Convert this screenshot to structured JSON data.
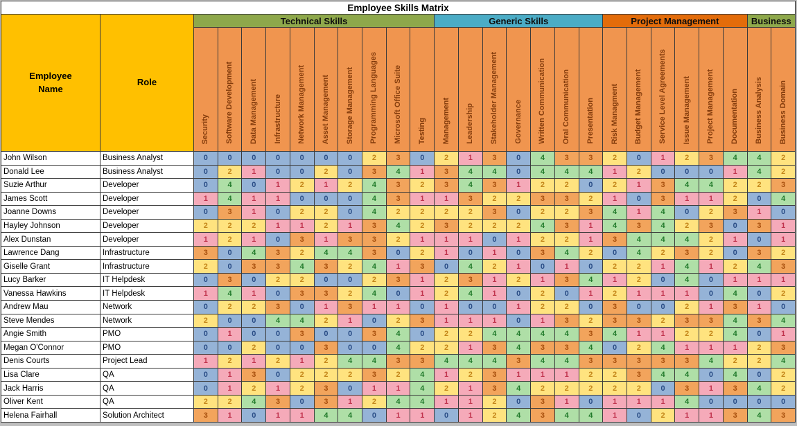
{
  "title": "Employee Skills Matrix",
  "header": {
    "employee_col": "Employee\nName",
    "role_col": "Role"
  },
  "accent_colors": {
    "corner_header_gold": "#FFC000",
    "skill_header_orange": "#F0954F",
    "technical_group_green": "#8EA84B",
    "generic_group_blue": "#4BACC6",
    "project_group_orange": "#E36C0A",
    "business_group_green": "#8EA84B",
    "grid_line": "#3a3a3a"
  },
  "level_colors": {
    "0": {
      "bg": "#95B3D7",
      "fg": "#2A4D86"
    },
    "1": {
      "bg": "#F5AAB9",
      "fg": "#C0334D"
    },
    "2": {
      "bg": "#FFE37F",
      "fg": "#C4861A"
    },
    "3": {
      "bg": "#F2A45C",
      "fg": "#A8500E"
    },
    "4": {
      "bg": "#AFDFA7",
      "fg": "#217A2B"
    }
  },
  "chart_data": {
    "type": "heatmap",
    "title": "Employee Skills Matrix",
    "value_range": [
      0,
      4
    ],
    "column_groups": [
      {
        "label": "Technical Skills",
        "color": "#8EA84B",
        "skills": [
          "Security",
          "Software Development",
          "Data Management",
          "Infrastructure",
          "Network Management",
          "Asset Management",
          "Storage Management",
          "Programming Languages",
          "Microsoft Office Suite",
          "Testing"
        ]
      },
      {
        "label": "Generic Skills",
        "color": "#4BACC6",
        "skills": [
          "Management",
          "Leadership",
          "Stakeholder Management",
          "Governance",
          "Written Communication",
          "Oral Communication",
          "Presentation"
        ]
      },
      {
        "label": "Project Management",
        "color": "#E36C0A",
        "skills": [
          "Risk Managment",
          "Budget Management",
          "Service Level Agreements",
          "Issue Management",
          "Project Management",
          "Documentation"
        ]
      },
      {
        "label": "Business",
        "color": "#8EA84B",
        "skills": [
          "Business Analysis",
          "Business Domain"
        ]
      }
    ],
    "rows": [
      {
        "name": "John Wilson",
        "role": "Business Analyst",
        "ratings": [
          0,
          0,
          0,
          0,
          0,
          0,
          0,
          2,
          3,
          0,
          2,
          1,
          3,
          0,
          4,
          3,
          3,
          2,
          0,
          1,
          2,
          3,
          4,
          4,
          2
        ]
      },
      {
        "name": "Donald Lee",
        "role": "Business Analyst",
        "ratings": [
          0,
          2,
          1,
          0,
          0,
          2,
          0,
          3,
          4,
          1,
          3,
          4,
          4,
          0,
          4,
          4,
          4,
          1,
          2,
          0,
          0,
          0,
          1,
          4,
          2
        ]
      },
      {
        "name": "Suzie Arthur",
        "role": "Developer",
        "ratings": [
          0,
          4,
          0,
          1,
          2,
          1,
          2,
          4,
          3,
          2,
          3,
          4,
          3,
          1,
          2,
          2,
          0,
          2,
          1,
          3,
          4,
          4,
          2,
          2,
          3
        ]
      },
      {
        "name": "James Scott",
        "role": "Developer",
        "ratings": [
          1,
          4,
          1,
          1,
          0,
          0,
          0,
          4,
          3,
          1,
          1,
          3,
          2,
          2,
          3,
          3,
          2,
          1,
          0,
          3,
          1,
          1,
          2,
          0,
          4
        ]
      },
      {
        "name": "Joanne Downs",
        "role": "Developer",
        "ratings": [
          0,
          3,
          1,
          0,
          2,
          2,
          0,
          4,
          2,
          2,
          2,
          2,
          3,
          0,
          2,
          2,
          3,
          4,
          1,
          4,
          0,
          2,
          3,
          1,
          0
        ]
      },
      {
        "name": "Hayley Johnson",
        "role": "Developer",
        "ratings": [
          2,
          2,
          2,
          1,
          1,
          2,
          1,
          3,
          4,
          2,
          3,
          2,
          2,
          2,
          4,
          3,
          1,
          4,
          3,
          4,
          2,
          3,
          0,
          3,
          1
        ]
      },
      {
        "name": "Alex Dunstan",
        "role": "Developer",
        "ratings": [
          1,
          2,
          1,
          0,
          3,
          1,
          3,
          3,
          2,
          1,
          1,
          1,
          0,
          1,
          2,
          2,
          1,
          3,
          4,
          4,
          4,
          2,
          1,
          0,
          1
        ]
      },
      {
        "name": "Lawrence Dang",
        "role": "Infrastructure",
        "ratings": [
          3,
          0,
          4,
          3,
          2,
          4,
          4,
          3,
          0,
          2,
          1,
          0,
          1,
          0,
          3,
          4,
          2,
          0,
          4,
          2,
          3,
          2,
          0,
          3,
          2
        ]
      },
      {
        "name": "Giselle Grant",
        "role": "Infrastructure",
        "ratings": [
          2,
          0,
          3,
          3,
          4,
          3,
          2,
          4,
          1,
          3,
          0,
          4,
          2,
          1,
          0,
          1,
          0,
          2,
          2,
          1,
          4,
          1,
          2,
          4,
          3
        ]
      },
      {
        "name": "Lucy Barker",
        "role": "IT Helpdesk",
        "ratings": [
          0,
          3,
          0,
          2,
          2,
          0,
          0,
          2,
          3,
          1,
          2,
          3,
          1,
          2,
          1,
          3,
          4,
          1,
          2,
          0,
          4,
          0,
          1,
          1,
          1
        ]
      },
      {
        "name": "Vanessa Hawkins",
        "role": "IT Helpdesk",
        "ratings": [
          1,
          4,
          1,
          0,
          3,
          3,
          2,
          4,
          0,
          1,
          2,
          4,
          1,
          0,
          2,
          0,
          1,
          2,
          1,
          1,
          1,
          0,
          4,
          0,
          2
        ]
      },
      {
        "name": "Andrew Mau",
        "role": "Network",
        "ratings": [
          0,
          2,
          2,
          3,
          0,
          1,
          3,
          1,
          1,
          0,
          1,
          0,
          0,
          1,
          2,
          2,
          0,
          3,
          0,
          0,
          2,
          1,
          3,
          1,
          0
        ]
      },
      {
        "name": "Steve Mendes",
        "role": "Network",
        "ratings": [
          2,
          0,
          0,
          4,
          4,
          2,
          1,
          0,
          2,
          3,
          1,
          1,
          1,
          0,
          1,
          3,
          2,
          3,
          3,
          2,
          3,
          3,
          4,
          3,
          4
        ]
      },
      {
        "name": "Angie Smith",
        "role": "PMO",
        "ratings": [
          0,
          1,
          0,
          0,
          3,
          0,
          0,
          3,
          4,
          0,
          2,
          2,
          4,
          4,
          4,
          4,
          3,
          4,
          1,
          1,
          2,
          2,
          4,
          0,
          1
        ]
      },
      {
        "name": "Megan O'Connor",
        "role": "PMO",
        "ratings": [
          0,
          0,
          2,
          0,
          0,
          3,
          0,
          0,
          4,
          2,
          2,
          1,
          3,
          4,
          3,
          3,
          4,
          0,
          2,
          4,
          1,
          1,
          1,
          2,
          3
        ]
      },
      {
        "name": "Denis Courts",
        "role": "Project Lead",
        "ratings": [
          1,
          2,
          1,
          2,
          1,
          2,
          4,
          4,
          3,
          3,
          4,
          4,
          4,
          3,
          4,
          4,
          3,
          3,
          3,
          3,
          3,
          4,
          2,
          2,
          4
        ]
      },
      {
        "name": "Lisa Clare",
        "role": "QA",
        "ratings": [
          0,
          1,
          3,
          0,
          2,
          2,
          2,
          3,
          2,
          4,
          1,
          2,
          3,
          1,
          1,
          1,
          2,
          2,
          3,
          4,
          4,
          0,
          4,
          0,
          2
        ]
      },
      {
        "name": "Jack Harris",
        "role": "QA",
        "ratings": [
          0,
          1,
          2,
          1,
          2,
          3,
          0,
          1,
          1,
          4,
          2,
          1,
          3,
          4,
          2,
          2,
          2,
          2,
          2,
          0,
          3,
          1,
          3,
          4,
          2
        ]
      },
      {
        "name": "Oliver Kent",
        "role": "QA",
        "ratings": [
          2,
          2,
          4,
          3,
          0,
          3,
          1,
          2,
          4,
          4,
          1,
          1,
          2,
          0,
          3,
          1,
          0,
          1,
          1,
          1,
          4,
          0,
          0,
          0,
          0
        ]
      },
      {
        "name": "Helena Fairhall",
        "role": "Solution Architect",
        "ratings": [
          3,
          1,
          0,
          1,
          1,
          4,
          4,
          0,
          1,
          1,
          0,
          1,
          2,
          4,
          3,
          4,
          4,
          1,
          0,
          2,
          1,
          1,
          3,
          4,
          3
        ]
      }
    ]
  }
}
